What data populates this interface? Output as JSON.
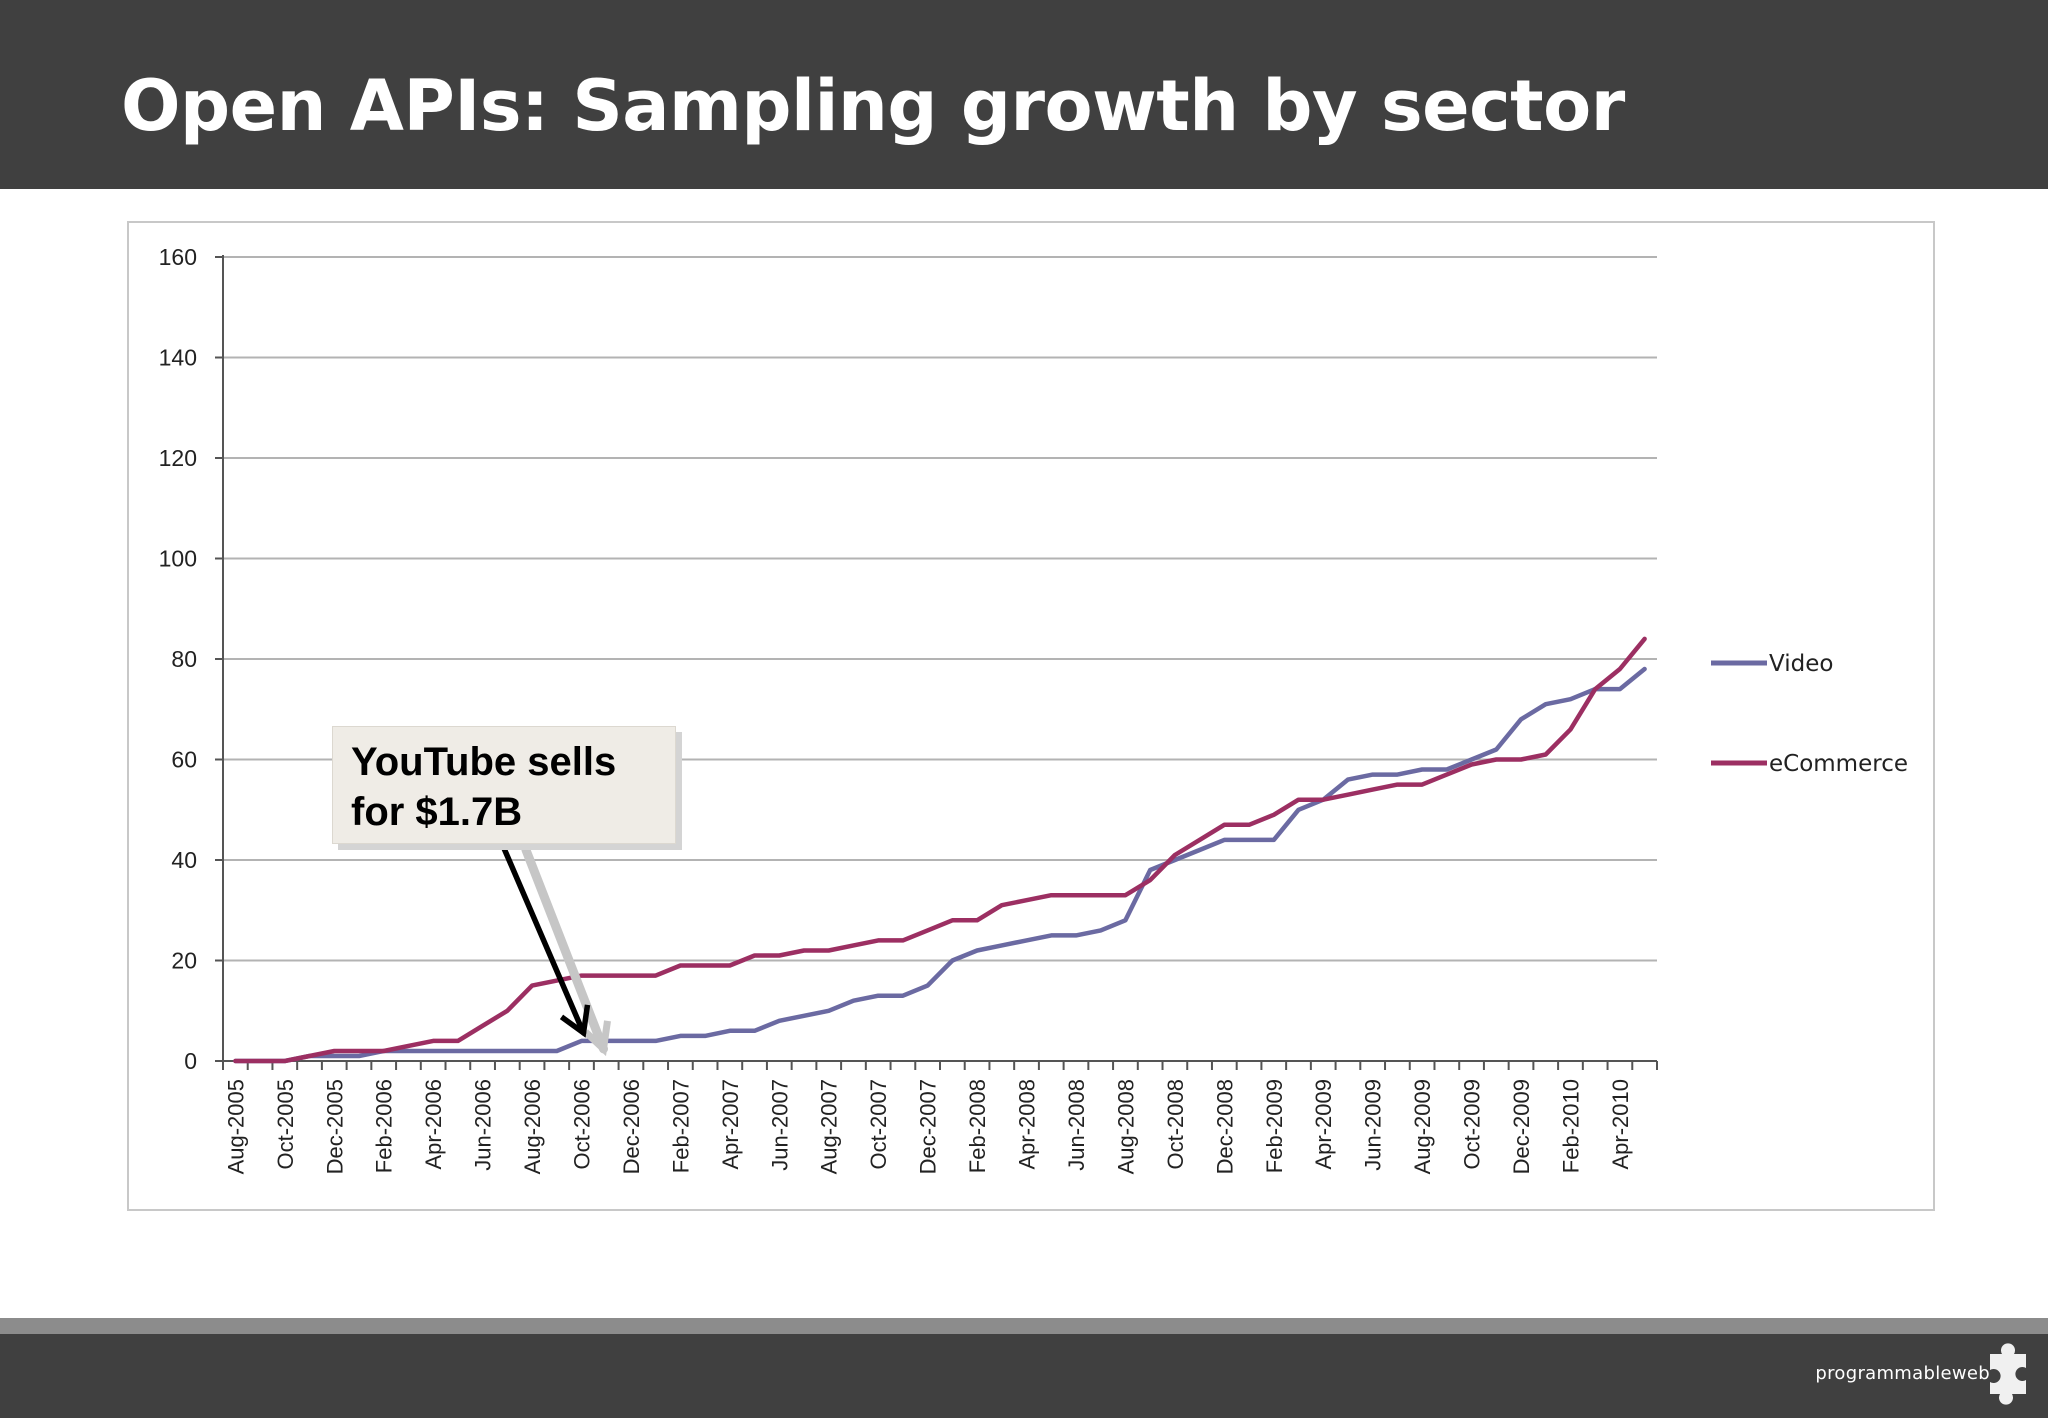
{
  "slide": {
    "title": "Open APIs: Sampling growth by sector"
  },
  "annotation": {
    "line1": "YouTube sells",
    "line2": "for $1.7B",
    "points_to": "Oct-2006"
  },
  "brand": {
    "logo_text_a": "programmable",
    "logo_text_b": "web",
    "logo_icon": "puzzle-piece-icon"
  },
  "colors": {
    "header_bg": "#404040",
    "video": "#6b6aa2",
    "ecommerce": "#9c2f62",
    "gridline": "#b3b3b3"
  },
  "chart_data": {
    "type": "line",
    "title": "",
    "xlabel": "",
    "ylabel": "",
    "ylim": [
      0,
      160
    ],
    "y_ticks": [
      0,
      20,
      40,
      60,
      80,
      100,
      120,
      140,
      160
    ],
    "grid": true,
    "legend_position": "right",
    "x_tick_labels": [
      "Aug-2005",
      "Oct-2005",
      "Dec-2005",
      "Feb-2006",
      "Apr-2006",
      "Jun-2006",
      "Aug-2006",
      "Oct-2006",
      "Dec-2006",
      "Feb-2007",
      "Apr-2007",
      "Jun-2007",
      "Aug-2007",
      "Oct-2007",
      "Dec-2007",
      "Feb-2008",
      "Apr-2008",
      "Jun-2008",
      "Aug-2008",
      "Oct-2008",
      "Dec-2008",
      "Feb-2009",
      "Apr-2009",
      "Jun-2009",
      "Aug-2009",
      "Oct-2009",
      "Dec-2009",
      "Feb-2010",
      "Apr-2010"
    ],
    "x": [
      "Aug-2005",
      "Sep-2005",
      "Oct-2005",
      "Nov-2005",
      "Dec-2005",
      "Jan-2006",
      "Feb-2006",
      "Mar-2006",
      "Apr-2006",
      "May-2006",
      "Jun-2006",
      "Jul-2006",
      "Aug-2006",
      "Sep-2006",
      "Oct-2006",
      "Nov-2006",
      "Dec-2006",
      "Jan-2007",
      "Feb-2007",
      "Mar-2007",
      "Apr-2007",
      "May-2007",
      "Jun-2007",
      "Jul-2007",
      "Aug-2007",
      "Sep-2007",
      "Oct-2007",
      "Nov-2007",
      "Dec-2007",
      "Jan-2008",
      "Feb-2008",
      "Mar-2008",
      "Apr-2008",
      "May-2008",
      "Jun-2008",
      "Jul-2008",
      "Aug-2008",
      "Sep-2008",
      "Oct-2008",
      "Nov-2008",
      "Dec-2008",
      "Jan-2009",
      "Feb-2009",
      "Mar-2009",
      "Apr-2009",
      "May-2009",
      "Jun-2009",
      "Jul-2009",
      "Aug-2009",
      "Sep-2009",
      "Oct-2009",
      "Nov-2009",
      "Dec-2009",
      "Jan-2010",
      "Feb-2010",
      "Mar-2010",
      "Apr-2010",
      "May-2010"
    ],
    "series": [
      {
        "name": "Video",
        "color": "#6b6aa2",
        "values": [
          0,
          0,
          0,
          1,
          1,
          1,
          2,
          2,
          2,
          2,
          2,
          2,
          2,
          2,
          4,
          4,
          4,
          4,
          5,
          5,
          6,
          6,
          8,
          9,
          10,
          12,
          13,
          13,
          15,
          20,
          22,
          23,
          24,
          25,
          25,
          26,
          28,
          38,
          40,
          42,
          44,
          44,
          44,
          50,
          52,
          56,
          57,
          57,
          58,
          58,
          60,
          62,
          68,
          71,
          72,
          74,
          74,
          78
        ]
      },
      {
        "name": "eCommerce",
        "color": "#9c2f62",
        "values": [
          0,
          0,
          0,
          1,
          2,
          2,
          2,
          3,
          4,
          4,
          7,
          10,
          15,
          16,
          17,
          17,
          17,
          17,
          19,
          19,
          19,
          21,
          21,
          22,
          22,
          23,
          24,
          24,
          26,
          28,
          28,
          31,
          32,
          33,
          33,
          33,
          33,
          36,
          41,
          44,
          47,
          47,
          49,
          52,
          52,
          53,
          54,
          55,
          55,
          57,
          59,
          60,
          60,
          61,
          66,
          74,
          78,
          84
        ]
      }
    ]
  }
}
